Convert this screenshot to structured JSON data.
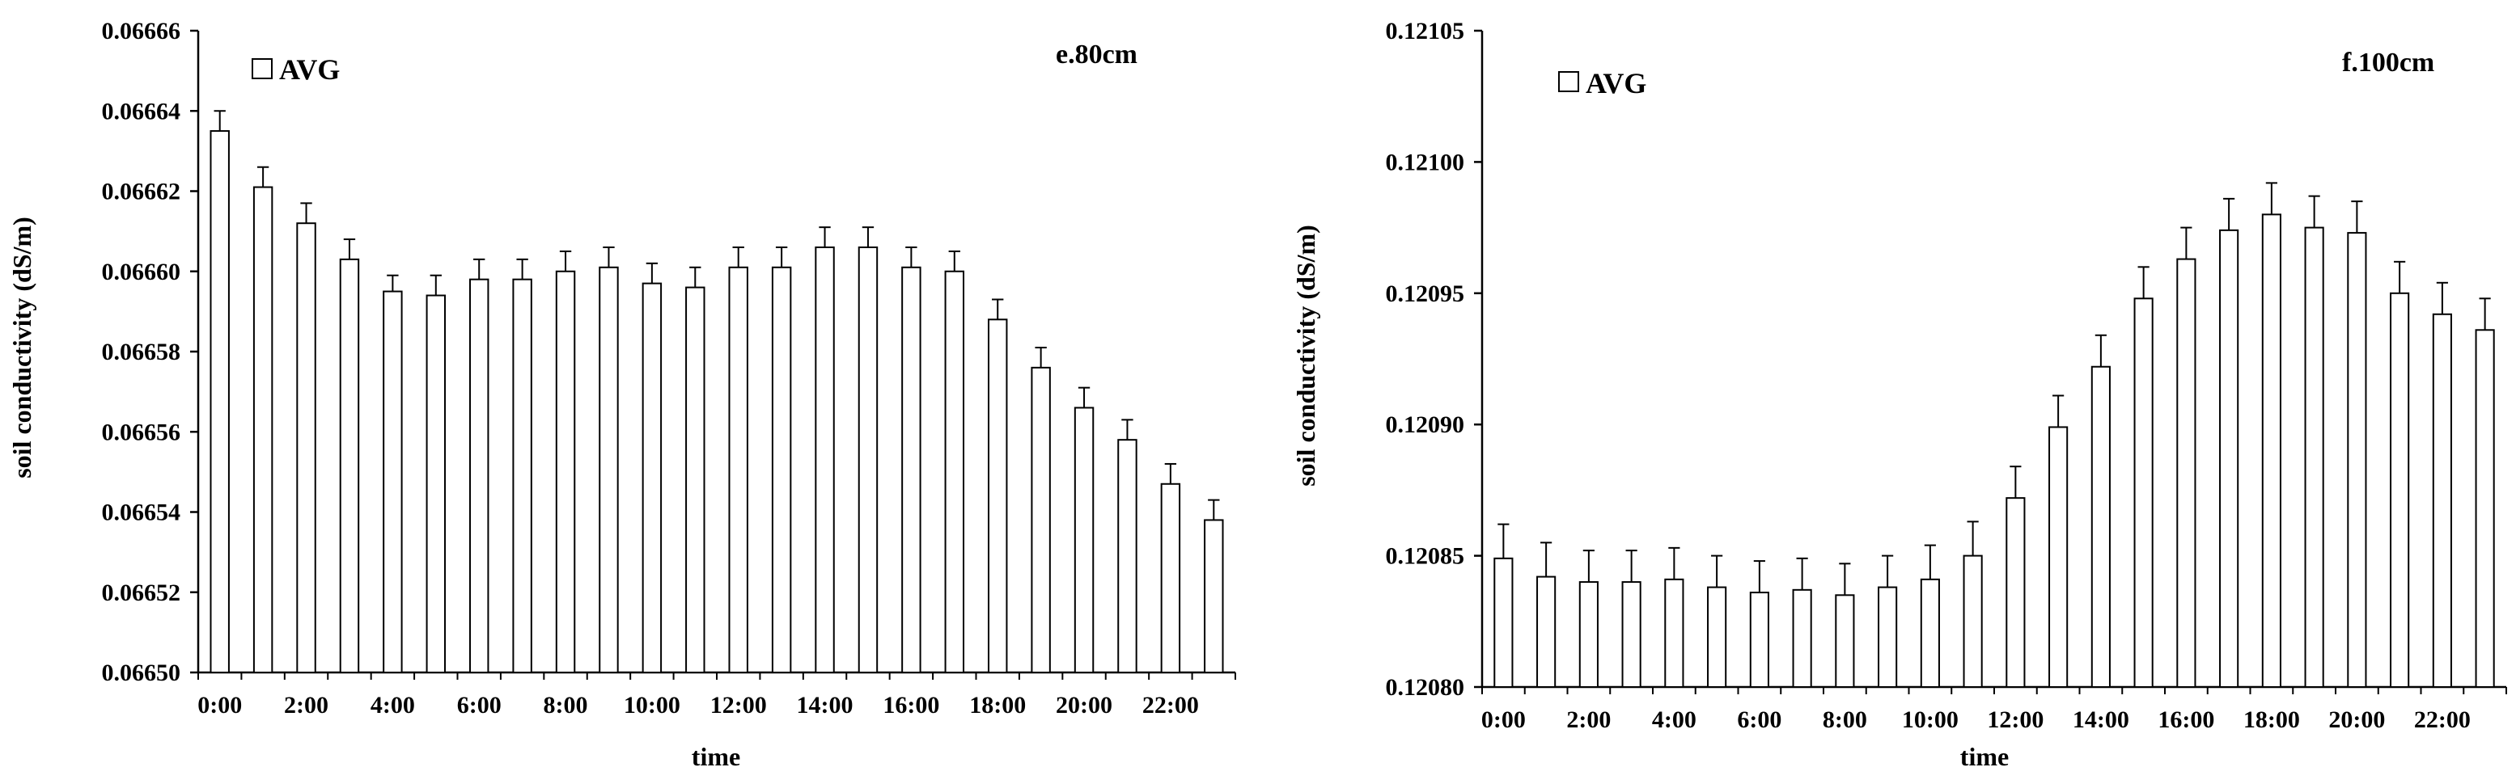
{
  "charts": [
    {
      "panel_label": "e.80cm",
      "legend_label": "AVG",
      "xlabel": "time",
      "ylabel": "soil conductivity (dS/m)",
      "y_ticks": [
        "0.06650",
        "0.06652",
        "0.06654",
        "0.06656",
        "0.06658",
        "0.06660",
        "0.06662",
        "0.06664",
        "0.06666"
      ],
      "x_ticks": [
        "0:00",
        "2:00",
        "4:00",
        "6:00",
        "8:00",
        "10:00",
        "12:00",
        "14:00",
        "16:00",
        "18:00",
        "20:00",
        "22:00"
      ]
    },
    {
      "panel_label": "f.100cm",
      "legend_label": "AVG",
      "xlabel": "time",
      "ylabel": "soil conductivity (dS/m)",
      "y_ticks": [
        "0.12080",
        "0.12085",
        "0.12090",
        "0.12095",
        "0.12100",
        "0.12105"
      ],
      "x_ticks": [
        "0:00",
        "2:00",
        "4:00",
        "6:00",
        "8:00",
        "10:00",
        "12:00",
        "14:00",
        "16:00",
        "18:00",
        "20:00",
        "22:00"
      ]
    }
  ],
  "chart_data": [
    {
      "type": "bar",
      "title": "e.80cm",
      "xlabel": "time",
      "ylabel": "soil conductivity (dS/m)",
      "ylim": [
        0.0665,
        0.06666
      ],
      "legend": "top-left",
      "grid": false,
      "categories": [
        "0:00",
        "1:00",
        "2:00",
        "3:00",
        "4:00",
        "5:00",
        "6:00",
        "7:00",
        "8:00",
        "9:00",
        "10:00",
        "11:00",
        "12:00",
        "13:00",
        "14:00",
        "15:00",
        "16:00",
        "17:00",
        "18:00",
        "19:00",
        "20:00",
        "21:00",
        "22:00",
        "23:00"
      ],
      "series": [
        {
          "name": "AVG",
          "values": [
            0.066635,
            0.066621,
            0.066612,
            0.066603,
            0.066595,
            0.066594,
            0.066598,
            0.066598,
            0.0666,
            0.066601,
            0.066597,
            0.066596,
            0.066601,
            0.066601,
            0.066606,
            0.066606,
            0.066601,
            0.0666,
            0.066588,
            0.066576,
            0.066566,
            0.066558,
            0.066547,
            0.066538
          ],
          "error": [
            5e-06,
            5e-06,
            5e-06,
            5e-06,
            4e-06,
            5e-06,
            5e-06,
            5e-06,
            5e-06,
            5e-06,
            5e-06,
            5e-06,
            5e-06,
            5e-06,
            5e-06,
            5e-06,
            5e-06,
            5e-06,
            5e-06,
            5e-06,
            5e-06,
            5e-06,
            5e-06,
            5e-06
          ]
        }
      ]
    },
    {
      "type": "bar",
      "title": "f.100cm",
      "xlabel": "time",
      "ylabel": "soil conductivity (dS/m)",
      "ylim": [
        0.1208,
        0.12105
      ],
      "legend": "top-left",
      "grid": false,
      "categories": [
        "0:00",
        "1:00",
        "2:00",
        "3:00",
        "4:00",
        "5:00",
        "6:00",
        "7:00",
        "8:00",
        "9:00",
        "10:00",
        "11:00",
        "12:00",
        "13:00",
        "14:00",
        "15:00",
        "16:00",
        "17:00",
        "18:00",
        "19:00",
        "20:00",
        "21:00",
        "22:00",
        "23:00"
      ],
      "series": [
        {
          "name": "AVG",
          "values": [
            0.120849,
            0.120842,
            0.12084,
            0.12084,
            0.120841,
            0.120838,
            0.120836,
            0.120837,
            0.120835,
            0.120838,
            0.120841,
            0.12085,
            0.120872,
            0.120899,
            0.120922,
            0.120948,
            0.120963,
            0.120974,
            0.12098,
            0.120975,
            0.120973,
            0.12095,
            0.120942,
            0.120936
          ],
          "error": [
            1.3e-05,
            1.3e-05,
            1.2e-05,
            1.2e-05,
            1.2e-05,
            1.2e-05,
            1.2e-05,
            1.2e-05,
            1.2e-05,
            1.2e-05,
            1.3e-05,
            1.3e-05,
            1.2e-05,
            1.2e-05,
            1.2e-05,
            1.2e-05,
            1.2e-05,
            1.2e-05,
            1.2e-05,
            1.2e-05,
            1.2e-05,
            1.2e-05,
            1.2e-05,
            1.2e-05
          ]
        }
      ]
    }
  ]
}
